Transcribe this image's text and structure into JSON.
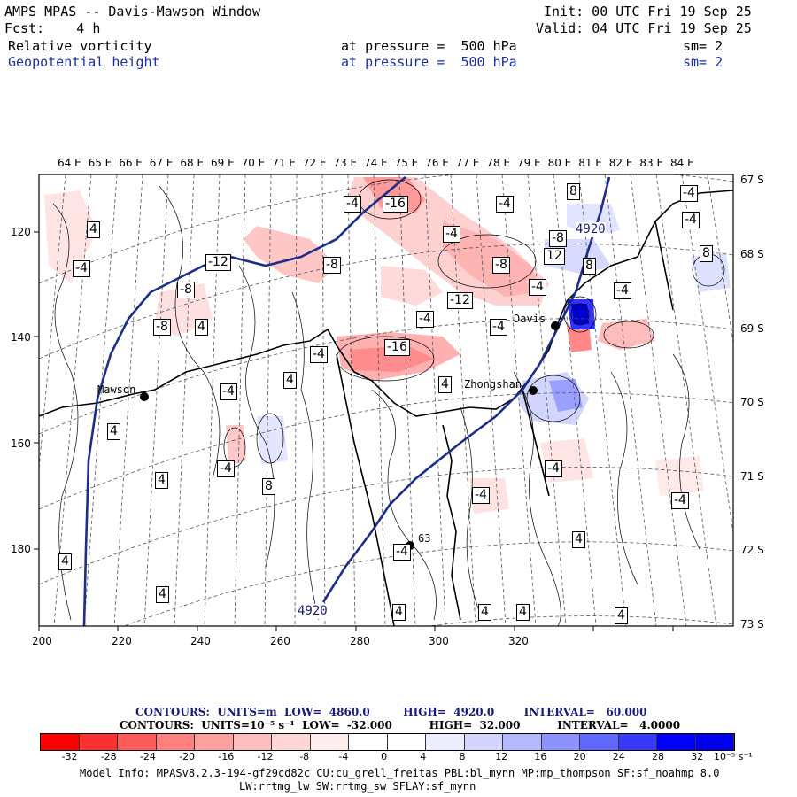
{
  "header": {
    "line1_left": "AMPS MPAS -- Davis-Mawson Window",
    "line1_right": "Init: 00 UTC Fri 19 Sep 25",
    "line2_left": "Fcst:    4 h",
    "line2_right": "Valid: 04 UTC Fri 19 Sep 25",
    "field1_name": "Relative vorticity",
    "field1_level": "at pressure =  500 hPa",
    "field1_sm": "sm= 2",
    "field2_name": "Geopotential height",
    "field2_level": "at pressure =  500 hPa",
    "field2_sm": "sm= 2"
  },
  "map": {
    "longitude_labels": [
      "64 E",
      "65 E",
      "66 E",
      "67 E",
      "68 E",
      "69 E",
      "70 E",
      "71 E",
      "72 E",
      "73 E",
      "74 E",
      "75 E",
      "76 E",
      "77 E",
      "78 E",
      "79 E",
      "80 E",
      "81 E",
      "82 E",
      "83 E",
      "84 E"
    ],
    "latitude_labels": [
      "67 S",
      "68 S",
      "69 S",
      "70 S",
      "71 S",
      "72 S",
      "73 S"
    ],
    "x_axis_labels": [
      "200",
      "220",
      "240",
      "260",
      "280",
      "300",
      "320"
    ],
    "y_axis_labels": [
      "120",
      "140",
      "160",
      "180"
    ],
    "stations": [
      {
        "name": "Mawson"
      },
      {
        "name": "Davis"
      },
      {
        "name": "Zhongshan"
      },
      {
        "name": "63"
      }
    ],
    "height_labels": [
      "4920",
      "4920"
    ],
    "vorticity_labels": [
      "-4",
      "-16",
      "-4",
      "4",
      "-4",
      "-12",
      "-8",
      "-8",
      "-4",
      "-8",
      "-4",
      "8",
      "12",
      "-4",
      "8",
      "-4",
      "-4",
      "-12",
      "-4",
      "-8",
      "-4",
      "-4",
      "-16",
      "-8",
      "4",
      "-4",
      "4",
      "4",
      "4",
      "-4",
      "8",
      "4",
      "-4",
      "4",
      "-4",
      "-4",
      "4",
      "4",
      "4",
      "4",
      "4",
      "-4",
      "4",
      "8"
    ]
  },
  "legend": {
    "contours1": "CONTOURS:  UNITS=m  LOW=  4860.0         HIGH=  4920.0        INTERVAL=   60.000",
    "contours2": "CONTOURS:  UNITS=10⁻⁵ s⁻¹  LOW=  -32.000          HIGH=  32.000          INTERVAL=   4.0000",
    "colorbar_labels": [
      "-32",
      "-28",
      "-24",
      "-20",
      "-16",
      "-12",
      "-8",
      "-4",
      "0",
      "4",
      "8",
      "12",
      "16",
      "20",
      "24",
      "28",
      "32"
    ],
    "colorbar_units": "10⁻⁵ s⁻¹",
    "colors": [
      "#ff0000",
      "#ff3030",
      "#ff5a5a",
      "#ff7f7f",
      "#ffa0a0",
      "#ffbcbc",
      "#ffd6d6",
      "#ffecec",
      "#ffffff",
      "#ffffff",
      "#eceeff",
      "#d2d6ff",
      "#b4b9ff",
      "#8c93ff",
      "#6168ff",
      "#3a3aff",
      "#0000ff",
      "#0000ee"
    ]
  },
  "footer": {
    "model_info": "Model Info: MPASv8.2.3-194-gf29cd82c CU:cu_grell_freitas PBL:bl_mynn MP:mp_thompson SF:sf_noahmp 8.0",
    "model_info2": "LW:rrtmg_lw SW:rrtmg_sw SFLAY:sf_mynn"
  }
}
